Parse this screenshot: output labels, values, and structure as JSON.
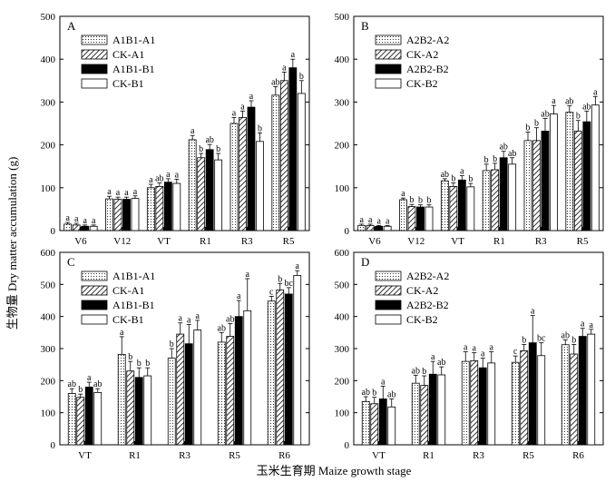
{
  "figure": {
    "ylabel": "生物量 Dry matter accumulation (g)",
    "xlabel": "玉米生育期 Maize growth stage"
  },
  "chart_data": [
    {
      "type": "bar",
      "panel": "A",
      "categories": [
        "V6",
        "V12",
        "VT",
        "R1",
        "R3",
        "R5"
      ],
      "ylim": [
        0,
        500
      ],
      "yticks": [
        0,
        100,
        200,
        300,
        400,
        500
      ],
      "legend_position": "top-left",
      "series": [
        {
          "name": "A1B1-A1",
          "pattern": "dots",
          "values": [
            15,
            74,
            100,
            212,
            250,
            316
          ],
          "errors": [
            4,
            6,
            8,
            10,
            14,
            20
          ],
          "letters": [
            "a",
            "a",
            "a",
            "a",
            "a",
            "ab"
          ]
        },
        {
          "name": "CK-A1",
          "pattern": "hatch",
          "values": [
            13,
            73,
            103,
            170,
            264,
            350
          ],
          "errors": [
            4,
            5,
            8,
            10,
            15,
            20
          ],
          "letters": [
            "a",
            "a",
            "ab",
            "b",
            "a",
            "a"
          ]
        },
        {
          "name": "A1B1-B1",
          "pattern": "solid",
          "values": [
            10,
            73,
            113,
            189,
            288,
            380
          ],
          "errors": [
            3,
            5,
            8,
            12,
            15,
            20
          ],
          "letters": [
            "a",
            "a",
            "a",
            "ab",
            "a",
            "a"
          ]
        },
        {
          "name": "CK-B1",
          "pattern": "white",
          "values": [
            10,
            75,
            110,
            165,
            208,
            320
          ],
          "errors": [
            3,
            6,
            10,
            15,
            20,
            30
          ],
          "letters": [
            "a",
            "a",
            "a",
            "b",
            "b",
            "b"
          ]
        }
      ]
    },
    {
      "type": "bar",
      "panel": "B",
      "categories": [
        "V6",
        "V12",
        "VT",
        "R1",
        "R3",
        "R5"
      ],
      "ylim": [
        0,
        500
      ],
      "yticks": [
        0,
        100,
        200,
        300,
        400,
        500
      ],
      "legend_position": "top-left",
      "series": [
        {
          "name": "A2B2-A2",
          "pattern": "dots",
          "values": [
            12,
            72,
            116,
            140,
            210,
            276
          ],
          "errors": [
            3,
            4,
            5,
            15,
            20,
            15
          ],
          "letters": [
            "a",
            "a",
            "ab",
            "b",
            "b",
            "ab"
          ]
        },
        {
          "name": "CK-A2",
          "pattern": "hatch",
          "values": [
            12,
            56,
            103,
            142,
            210,
            232
          ],
          "errors": [
            3,
            5,
            8,
            15,
            30,
            25
          ],
          "letters": [
            "a",
            "b",
            "b",
            "b",
            "b",
            "b"
          ]
        },
        {
          "name": "A2B2-B2",
          "pattern": "solid",
          "values": [
            10,
            55,
            118,
            170,
            232,
            254
          ],
          "errors": [
            2,
            5,
            10,
            15,
            30,
            25
          ],
          "letters": [
            "a",
            "b",
            "a",
            "ab",
            "ab",
            "ab"
          ]
        },
        {
          "name": "CK-B2",
          "pattern": "white",
          "values": [
            10,
            55,
            102,
            155,
            272,
            293
          ],
          "errors": [
            2,
            5,
            8,
            15,
            20,
            20
          ],
          "letters": [
            "a",
            "b",
            "b",
            "ab",
            "a",
            "a"
          ]
        }
      ]
    },
    {
      "type": "bar",
      "panel": "C",
      "categories": [
        "VT",
        "R1",
        "R3",
        "R5",
        "R6"
      ],
      "ylim": [
        0,
        600
      ],
      "yticks": [
        0,
        100,
        200,
        300,
        400,
        500,
        600
      ],
      "legend_position": "top-left",
      "series": [
        {
          "name": "A1B1-A1",
          "pattern": "dots",
          "values": [
            160,
            282,
            270,
            320,
            448
          ],
          "errors": [
            15,
            55,
            30,
            30,
            15
          ],
          "letters": [
            "ab",
            "a",
            "b",
            "ab",
            "c"
          ]
        },
        {
          "name": "CK-A1",
          "pattern": "hatch",
          "values": [
            148,
            230,
            345,
            338,
            483
          ],
          "errors": [
            10,
            30,
            35,
            40,
            20
          ],
          "letters": [
            "b",
            "b",
            "a",
            "ab",
            "b"
          ]
        },
        {
          "name": "A1B1-B1",
          "pattern": "solid",
          "values": [
            180,
            210,
            315,
            400,
            470
          ],
          "errors": [
            15,
            30,
            60,
            50,
            20
          ],
          "letters": [
            "a",
            "b",
            "a",
            "a",
            "bc"
          ]
        },
        {
          "name": "CK-B1",
          "pattern": "white",
          "values": [
            163,
            215,
            358,
            418,
            528
          ],
          "errors": [
            12,
            25,
            30,
            100,
            15
          ],
          "letters": [
            "ab",
            "b",
            "a",
            "a",
            "a"
          ]
        }
      ]
    },
    {
      "type": "bar",
      "panel": "D",
      "categories": [
        "VT",
        "R1",
        "R3",
        "R5",
        "R6"
      ],
      "ylim": [
        0,
        600
      ],
      "yticks": [
        0,
        100,
        200,
        300,
        400,
        500,
        600
      ],
      "legend_position": "top-left",
      "series": [
        {
          "name": "A2B2-A2",
          "pattern": "dots",
          "values": [
            135,
            192,
            260,
            257,
            312
          ],
          "errors": [
            15,
            25,
            30,
            20,
            15
          ],
          "letters": [
            "ab",
            "ab",
            "a",
            "c",
            "ab"
          ]
        },
        {
          "name": "CK-A2",
          "pattern": "hatch",
          "values": [
            128,
            185,
            262,
            293,
            283
          ],
          "errors": [
            20,
            30,
            25,
            20,
            30
          ],
          "letters": [
            "b",
            "b",
            "a",
            "b",
            "b"
          ]
        },
        {
          "name": "A2B2-B2",
          "pattern": "solid",
          "values": [
            143,
            220,
            240,
            318,
            338
          ],
          "errors": [
            40,
            40,
            30,
            85,
            25
          ],
          "letters": [
            "a",
            "a",
            "a",
            "a",
            "a"
          ]
        },
        {
          "name": "CK-B2",
          "pattern": "white",
          "values": [
            118,
            218,
            255,
            278,
            345
          ],
          "errors": [
            25,
            25,
            35,
            40,
            15
          ],
          "letters": [
            "ab",
            "ab",
            "a",
            "bc",
            "a"
          ]
        }
      ]
    }
  ]
}
